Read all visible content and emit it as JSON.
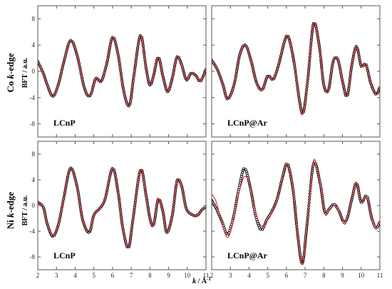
{
  "figure": {
    "row_labels": [
      "Co k-edge",
      "Ni k-edge"
    ],
    "row_label_prefix": [
      "Co ",
      "Ni "
    ],
    "row_label_k": "k",
    "row_label_suffix": "-edge",
    "y_axis_label": "BFT / a.u.",
    "x_axis_label": "k / Å",
    "x_axis_label_k": "k",
    "x_axis_label_unit": " / Å",
    "x_axis_label_sup": "-1"
  },
  "colors": {
    "experimental": "#000000",
    "fit": "#e0202a",
    "frame": "#555555"
  },
  "chart_data": [
    {
      "type": "line",
      "panel": "Co k-edge, LCnP",
      "label": "LCnP",
      "xlim": [
        2,
        11
      ],
      "ylim": [
        -10,
        10
      ],
      "xticks": [
        2,
        3,
        4,
        5,
        6,
        7,
        8,
        9,
        10,
        11
      ],
      "yticks": [
        -8,
        -4,
        0,
        4,
        8
      ],
      "ytick_labels": [
        "-8",
        "-4",
        "0",
        "4",
        "8"
      ],
      "x": [
        2.0,
        2.3,
        2.5,
        2.8,
        3.1,
        3.4,
        3.75,
        4.1,
        4.5,
        4.8,
        5.1,
        5.4,
        5.7,
        6.0,
        6.3,
        6.6,
        6.9,
        7.15,
        7.5,
        7.8,
        8.0,
        8.2,
        8.45,
        8.7,
        8.95,
        9.2,
        9.45,
        9.7,
        9.95,
        10.2,
        10.45,
        10.7,
        11.0
      ],
      "series": [
        {
          "name": "",
          "style": "circles",
          "values": [
            1.5,
            -0.3,
            -2.0,
            -3.8,
            -2.0,
            1.5,
            4.7,
            2.5,
            -2.6,
            -3.7,
            -1.1,
            -1.5,
            1.3,
            5.2,
            2.5,
            -3.0,
            -5.2,
            -0.5,
            5.5,
            0.4,
            -2.1,
            -0.6,
            2.2,
            -0.8,
            -3.1,
            -1.0,
            2.2,
            1.0,
            -1.3,
            -0.3,
            -0.6,
            -1.5,
            0.3
          ]
        },
        {
          "name": "",
          "style": "line",
          "values": [
            1.5,
            -0.3,
            -2.0,
            -3.8,
            -2.0,
            1.5,
            4.7,
            2.5,
            -2.6,
            -3.7,
            -1.1,
            -1.5,
            1.3,
            5.2,
            2.5,
            -3.0,
            -5.2,
            -0.5,
            5.5,
            0.4,
            -2.1,
            -0.6,
            2.2,
            -0.8,
            -3.1,
            -1.0,
            2.2,
            1.0,
            -1.3,
            -0.3,
            -0.6,
            -1.5,
            0.3
          ]
        }
      ]
    },
    {
      "type": "line",
      "panel": "Co k-edge, LCnP@Ar",
      "label": "LCnP@Ar",
      "xlim": [
        2,
        11
      ],
      "ylim": [
        -10,
        10
      ],
      "xticks": [
        2,
        3,
        4,
        5,
        6,
        7,
        8,
        9,
        10,
        11
      ],
      "yticks": [
        -8,
        -4,
        0,
        4,
        8
      ],
      "ytick_labels": [],
      "x": [
        2.0,
        2.3,
        2.6,
        2.85,
        3.2,
        3.5,
        3.8,
        4.1,
        4.4,
        4.7,
        5.0,
        5.3,
        5.6,
        5.9,
        6.1,
        6.4,
        6.7,
        6.9,
        7.15,
        7.45,
        7.75,
        8.0,
        8.25,
        8.5,
        8.75,
        9.0,
        9.25,
        9.5,
        9.75,
        10.0,
        10.25,
        10.5,
        10.8,
        11.0
      ],
      "series": [
        {
          "name": "",
          "style": "circles",
          "values": [
            1.7,
            0.3,
            -2.0,
            -4.2,
            -2.0,
            2.5,
            4.0,
            1.7,
            -1.7,
            -2.8,
            -0.7,
            -1.2,
            1.2,
            4.6,
            5.3,
            1.5,
            -4.5,
            -6.3,
            -1.0,
            7.3,
            4.0,
            -2.1,
            -2.8,
            1.5,
            1.8,
            -1.5,
            -3.8,
            1.0,
            3.8,
            0.8,
            1.1,
            -1.7,
            -3.5,
            -2.3
          ]
        },
        {
          "name": "",
          "style": "line",
          "values": [
            1.7,
            0.3,
            -2.0,
            -4.2,
            -2.0,
            2.5,
            4.0,
            1.7,
            -1.7,
            -2.8,
            -0.7,
            -1.2,
            1.2,
            4.6,
            5.3,
            1.5,
            -4.5,
            -6.3,
            -1.0,
            7.3,
            4.0,
            -2.1,
            -2.8,
            1.5,
            1.8,
            -1.5,
            -3.8,
            1.0,
            3.8,
            0.8,
            1.1,
            -1.7,
            -3.5,
            -2.3
          ]
        }
      ]
    },
    {
      "type": "line",
      "panel": "Ni k-edge, LCnP",
      "label": "LCnP",
      "xlim": [
        2,
        11
      ],
      "ylim": [
        -10,
        10
      ],
      "xticks": [
        2,
        3,
        4,
        5,
        6,
        7,
        8,
        9,
        10,
        11
      ],
      "xtick_labels": [
        "2",
        "3",
        "4",
        "5",
        "6",
        "7",
        "8",
        "9",
        "10",
        "11"
      ],
      "yticks": [
        -8,
        -4,
        0,
        4,
        8
      ],
      "ytick_labels": [
        "-8",
        "-4",
        "0",
        "4",
        "8"
      ],
      "x": [
        2.0,
        2.3,
        2.5,
        2.8,
        3.1,
        3.4,
        3.75,
        4.1,
        4.4,
        4.75,
        5.0,
        5.3,
        5.6,
        6.0,
        6.3,
        6.55,
        6.85,
        7.1,
        7.5,
        7.8,
        8.0,
        8.2,
        8.45,
        8.7,
        8.9,
        9.2,
        9.45,
        9.7,
        9.95,
        10.3,
        10.55,
        10.8,
        11.0
      ],
      "series": [
        {
          "name": "",
          "style": "circles",
          "values": [
            0.5,
            -0.3,
            -2.8,
            -4.8,
            -3.0,
            1.3,
            5.8,
            3.0,
            -2.2,
            -4.2,
            -1.5,
            -0.5,
            1.0,
            5.8,
            2.0,
            -3.5,
            -6.6,
            -2.0,
            5.6,
            1.5,
            -2.0,
            -3.0,
            1.0,
            -1.0,
            -4.2,
            -1.5,
            3.8,
            3.0,
            -0.5,
            -1.5,
            -1.5,
            -0.6,
            -0.3
          ]
        },
        {
          "name": "",
          "style": "line",
          "values": [
            0.5,
            -0.3,
            -2.8,
            -4.8,
            -3.0,
            1.3,
            5.8,
            3.0,
            -2.2,
            -4.2,
            -1.5,
            -0.5,
            1.0,
            5.8,
            2.0,
            -3.5,
            -6.6,
            -2.0,
            5.6,
            1.5,
            -2.0,
            -3.0,
            1.0,
            -1.0,
            -4.2,
            -1.5,
            3.8,
            3.0,
            -0.5,
            -1.5,
            -1.5,
            -0.6,
            -0.3
          ]
        }
      ]
    },
    {
      "type": "line",
      "panel": "Ni k-edge, LCnP@Ar",
      "label": "LCnP@Ar",
      "xlim": [
        2,
        11
      ],
      "ylim": [
        -10,
        10
      ],
      "xticks": [
        2,
        3,
        4,
        5,
        6,
        7,
        8,
        9,
        10,
        11
      ],
      "xtick_labels": [
        "2",
        "3",
        "4",
        "5",
        "6",
        "7",
        "8",
        "9",
        "10",
        "11"
      ],
      "yticks": [
        -8,
        -4,
        0,
        4,
        8
      ],
      "ytick_labels": [],
      "x": [
        2.0,
        2.25,
        2.55,
        2.85,
        3.15,
        3.45,
        3.75,
        4.05,
        4.35,
        4.65,
        4.95,
        5.2,
        5.5,
        5.8,
        6.05,
        6.35,
        6.6,
        6.85,
        7.1,
        7.45,
        7.8,
        8.05,
        8.3,
        8.55,
        8.8,
        9.05,
        9.25,
        9.5,
        9.75,
        10.0,
        10.3,
        10.55,
        10.8,
        11.0
      ],
      "series": [
        {
          "name": "",
          "style": "circles",
          "values": [
            0.8,
            -0.5,
            -2.5,
            -4.5,
            -2.0,
            2.5,
            5.8,
            3.0,
            -1.5,
            -3.8,
            -2.2,
            -1.0,
            1.0,
            4.5,
            6.5,
            2.5,
            -4.5,
            -9.0,
            -3.0,
            6.5,
            3.5,
            -1.0,
            -0.5,
            0.2,
            -0.8,
            -2.5,
            -2.0,
            1.0,
            3.5,
            0.5,
            1.5,
            -1.8,
            -3.5,
            -2.5
          ]
        },
        {
          "name": "",
          "style": "line",
          "values": [
            1.8,
            0.5,
            -2.8,
            -5.0,
            -2.5,
            1.8,
            4.5,
            3.2,
            -1.0,
            -3.2,
            -2.5,
            -1.3,
            1.2,
            4.3,
            6.4,
            2.2,
            -4.8,
            -9.2,
            -3.3,
            7.0,
            3.2,
            -1.3,
            -0.8,
            0.0,
            -0.5,
            -2.8,
            -2.2,
            1.2,
            3.6,
            0.6,
            1.2,
            -1.6,
            -3.2,
            -2.3
          ]
        }
      ]
    }
  ]
}
